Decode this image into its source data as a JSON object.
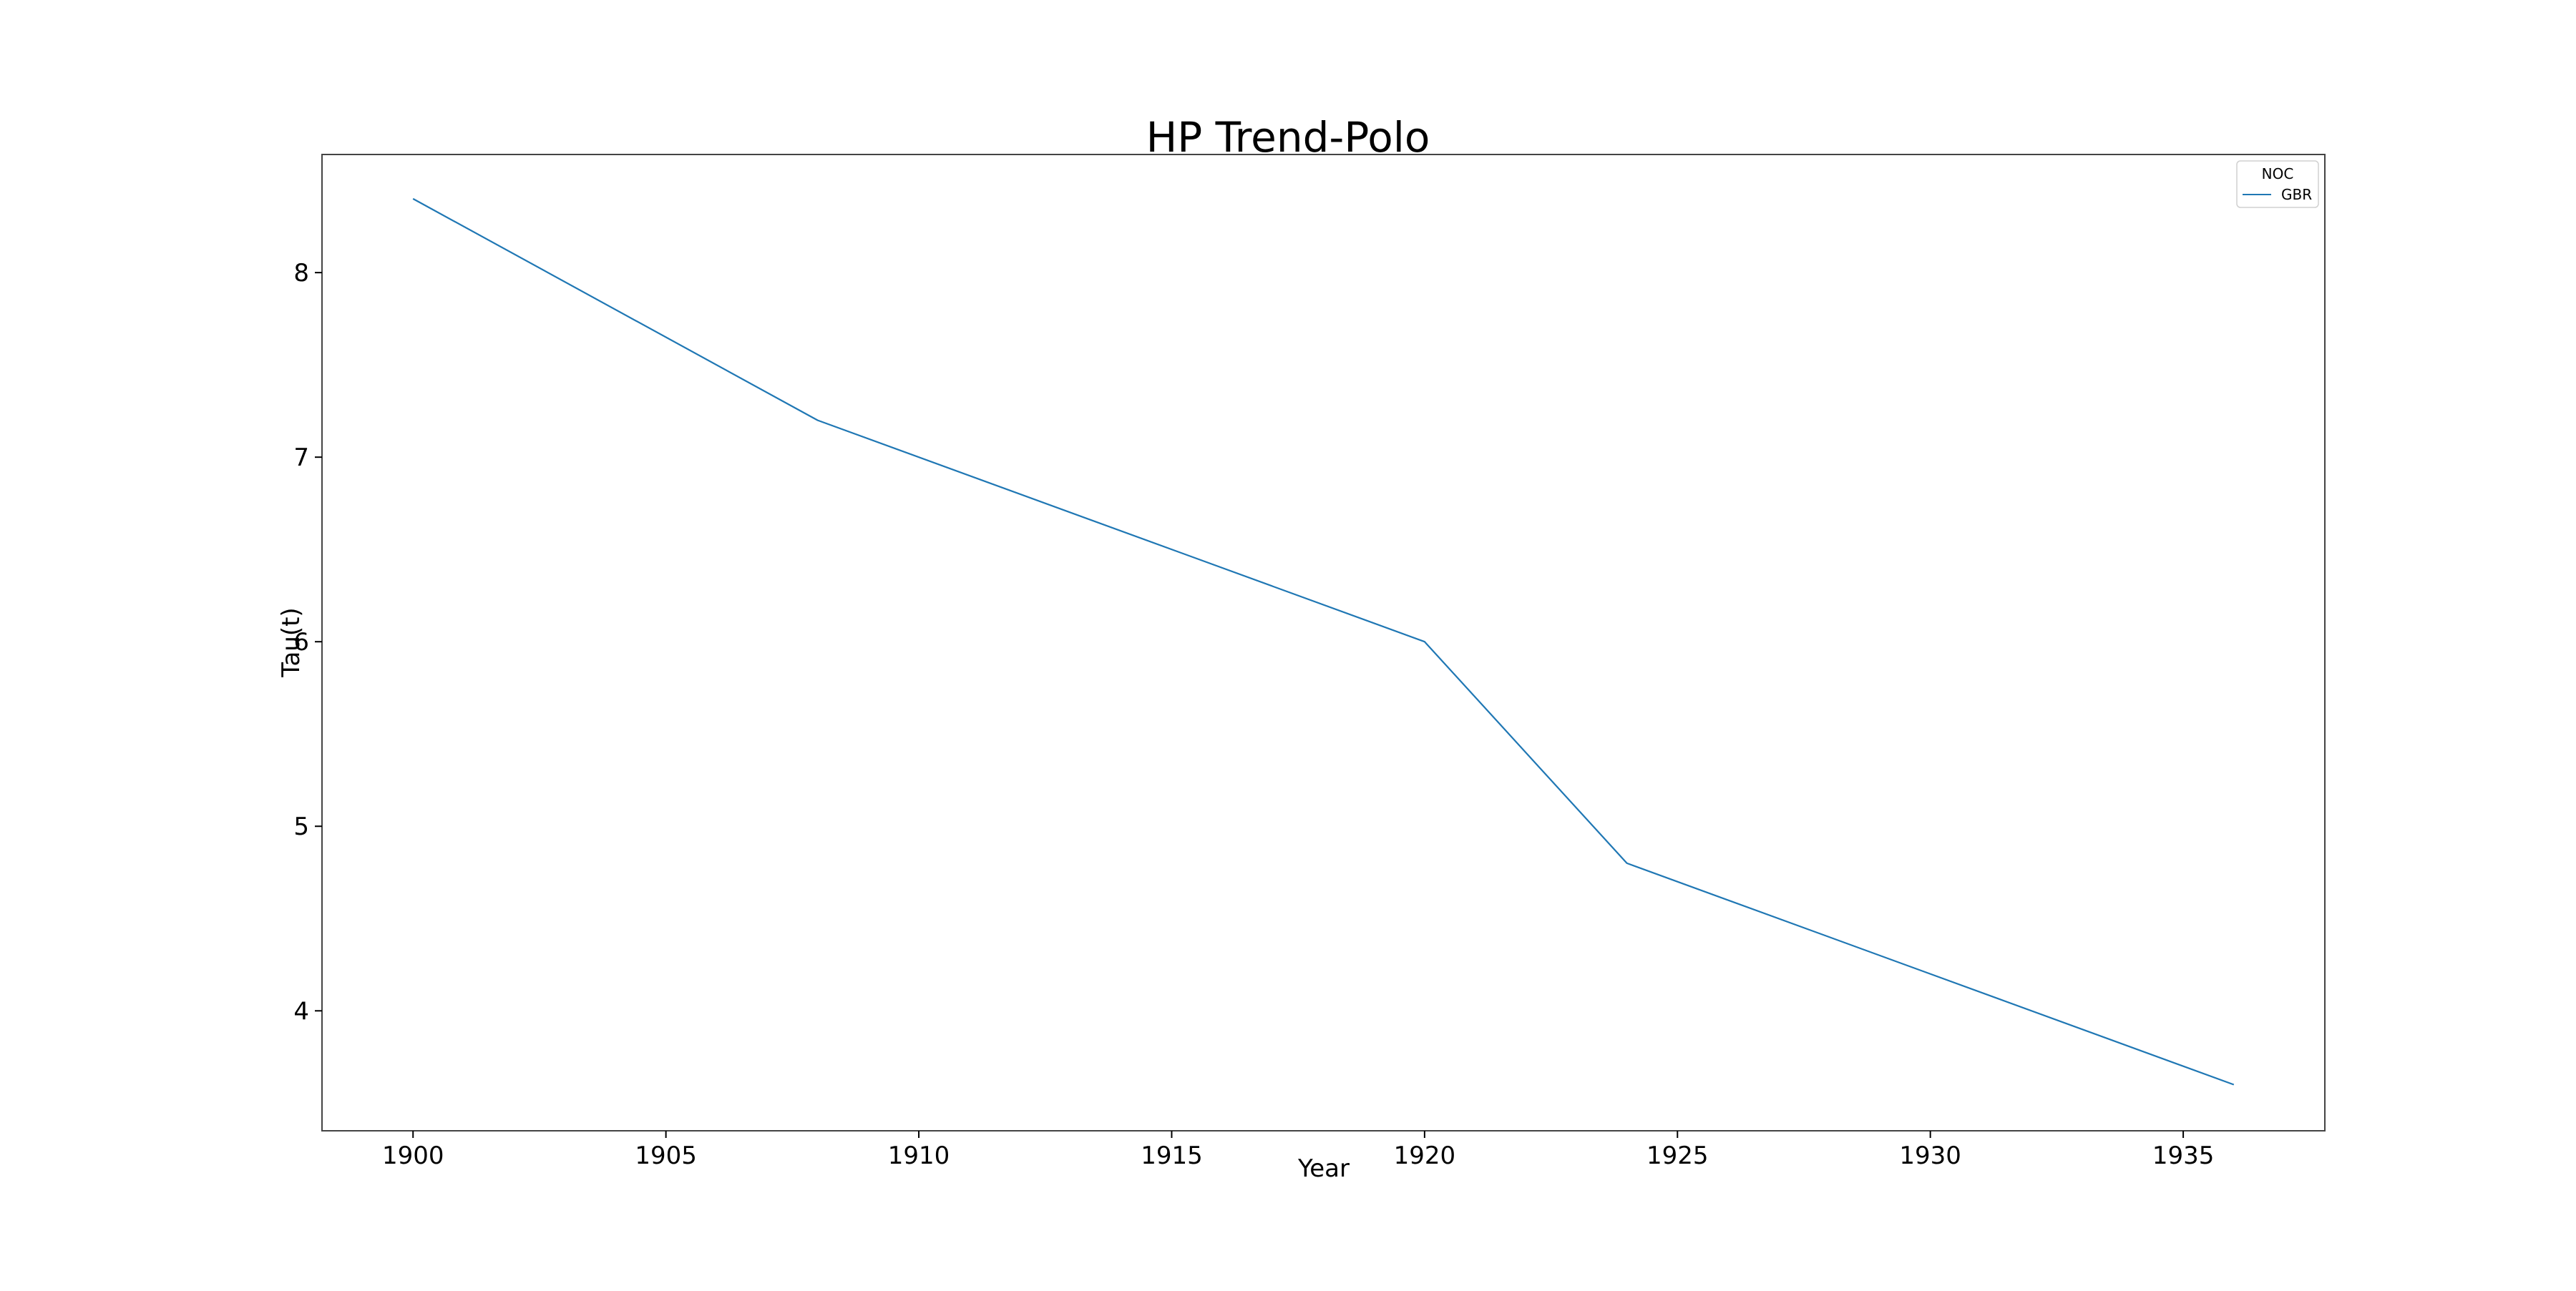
{
  "chart_data": {
    "type": "line",
    "title": "HP Trend-Polo",
    "xlabel": "Year",
    "ylabel": "Tau(t)",
    "xlim": [
      1898.2,
      1937.8
    ],
    "ylim": [
      3.35,
      8.64
    ],
    "xticks": [
      1900,
      1905,
      1910,
      1915,
      1920,
      1925,
      1930,
      1935
    ],
    "yticks": [
      4,
      5,
      6,
      7,
      8
    ],
    "grid": false,
    "legend": {
      "title": "NOC",
      "placement": "top-right"
    },
    "series": [
      {
        "name": "GBR",
        "color": "#1f77b4",
        "x": [
          1900,
          1908,
          1920,
          1924,
          1936
        ],
        "y": [
          8.4,
          7.2,
          6.0,
          4.8,
          3.6
        ]
      }
    ]
  }
}
